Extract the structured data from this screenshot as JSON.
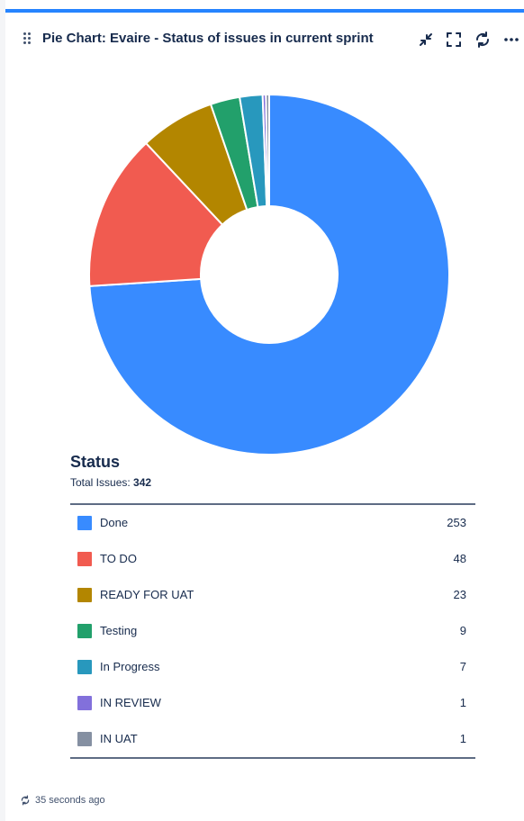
{
  "gadget": {
    "title": "Pie Chart: Evaire - Status of issues in current sprint",
    "actions": [
      {
        "name": "minimize-icon"
      },
      {
        "name": "maximize-icon"
      },
      {
        "name": "refresh-icon"
      },
      {
        "name": "more-icon"
      }
    ],
    "accent_color": "#2684ff"
  },
  "chart_data": {
    "type": "pie",
    "style": "donut",
    "title": "Status",
    "total_label": "Total Issues:",
    "total_value": "342",
    "categories": [
      "Done",
      "TO DO",
      "READY FOR UAT",
      "Testing",
      "In Progress",
      "IN REVIEW",
      "IN UAT"
    ],
    "values": [
      253,
      48,
      23,
      9,
      7,
      1,
      1
    ],
    "colors": [
      "#388bff",
      "#f15b50",
      "#b38600",
      "#22a06b",
      "#2898bd",
      "#8270db",
      "#8590a2"
    ]
  },
  "legend_rows": [
    {
      "label": "Done",
      "value": "253",
      "color": "#388bff"
    },
    {
      "label": "TO DO",
      "value": "48",
      "color": "#f15b50"
    },
    {
      "label": "READY FOR UAT",
      "value": "23",
      "color": "#b38600"
    },
    {
      "label": "Testing",
      "value": "9",
      "color": "#22a06b"
    },
    {
      "label": "In Progress",
      "value": "7",
      "color": "#2898bd"
    },
    {
      "label": "IN REVIEW",
      "value": "1",
      "color": "#8270db"
    },
    {
      "label": "IN UAT",
      "value": "1",
      "color": "#8590a2"
    }
  ],
  "footer": {
    "icon": "refresh-icon",
    "text": "35 seconds ago"
  }
}
